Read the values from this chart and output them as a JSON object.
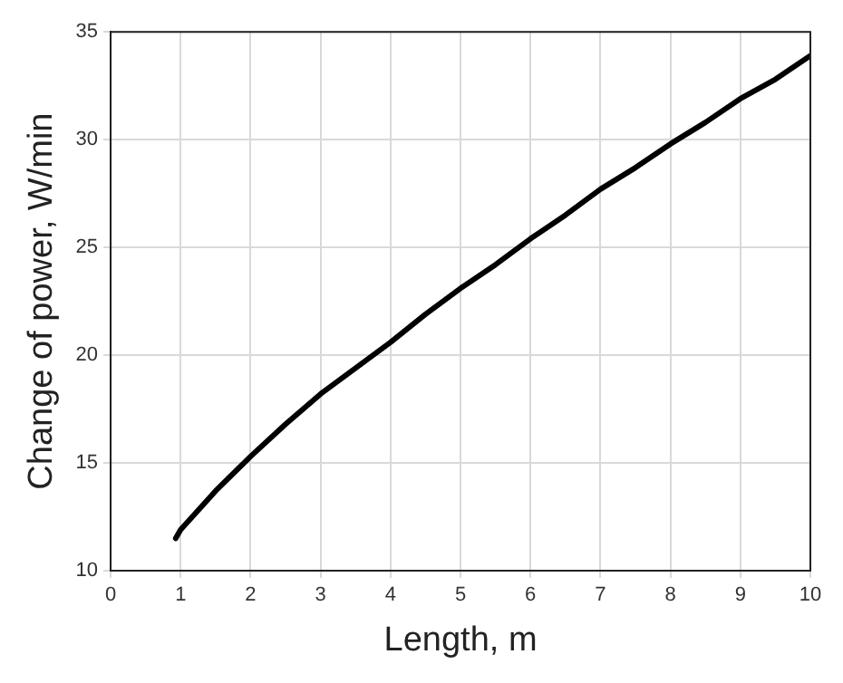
{
  "chart_data": {
    "type": "line",
    "xlabel": "Length, m",
    "ylabel": "Change of power, W/min",
    "x": [
      0.93,
      1,
      1.5,
      2,
      2.5,
      3,
      3.5,
      4,
      4.5,
      5,
      5.5,
      6,
      6.5,
      7,
      7.5,
      8,
      8.5,
      9,
      9.5,
      10
    ],
    "series": [
      {
        "color": "#000000",
        "values": [
          11.5,
          11.9,
          13.7,
          15.3,
          16.8,
          18.2,
          19.4,
          20.6,
          21.9,
          23.1,
          24.2,
          25.4,
          26.5,
          27.7,
          28.7,
          29.8,
          30.8,
          31.9,
          32.8,
          33.9
        ]
      }
    ],
    "xlim": [
      0,
      10
    ],
    "xticks": [
      0,
      1,
      2,
      3,
      4,
      5,
      6,
      7,
      8,
      9,
      10
    ],
    "ylim": [
      10,
      35
    ],
    "yticks": [
      10,
      15,
      20,
      25,
      30,
      35
    ],
    "grid": true,
    "legend": false,
    "marker": "none",
    "line_style": "solid"
  }
}
